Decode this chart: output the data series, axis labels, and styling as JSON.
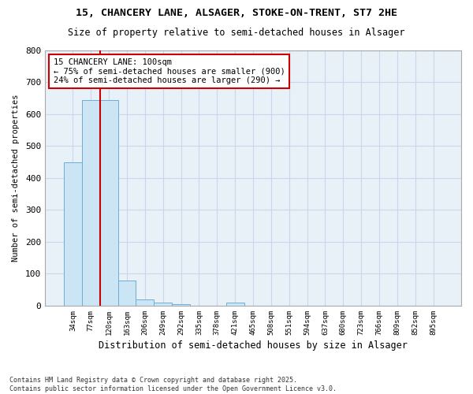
{
  "title_line1": "15, CHANCERY LANE, ALSAGER, STOKE-ON-TRENT, ST7 2HE",
  "title_line2": "Size of property relative to semi-detached houses in Alsager",
  "xlabel": "Distribution of semi-detached houses by size in Alsager",
  "ylabel": "Number of semi-detached properties",
  "categories": [
    "34sqm",
    "77sqm",
    "120sqm",
    "163sqm",
    "206sqm",
    "249sqm",
    "292sqm",
    "335sqm",
    "378sqm",
    "421sqm",
    "465sqm",
    "508sqm",
    "551sqm",
    "594sqm",
    "637sqm",
    "680sqm",
    "723sqm",
    "766sqm",
    "809sqm",
    "852sqm",
    "895sqm"
  ],
  "values": [
    450,
    645,
    645,
    80,
    20,
    10,
    5,
    0,
    0,
    10,
    0,
    0,
    0,
    0,
    0,
    0,
    0,
    0,
    0,
    0,
    0
  ],
  "bar_color": "#cce5f5",
  "bar_edge_color": "#6aaed6",
  "grid_color": "#c8d8ea",
  "red_line_x": 1.5,
  "annotation_text": "15 CHANCERY LANE: 100sqm\n← 75% of semi-detached houses are smaller (900)\n24% of semi-detached houses are larger (290) →",
  "annotation_box_color": "#ffffff",
  "annotation_box_edge_color": "#cc0000",
  "footer_line1": "Contains HM Land Registry data © Crown copyright and database right 2025.",
  "footer_line2": "Contains public sector information licensed under the Open Government Licence v3.0.",
  "ylim": [
    0,
    800
  ],
  "yticks": [
    0,
    100,
    200,
    300,
    400,
    500,
    600,
    700,
    800
  ],
  "fig_background": "#ffffff",
  "plot_background": "#e8f0f8"
}
